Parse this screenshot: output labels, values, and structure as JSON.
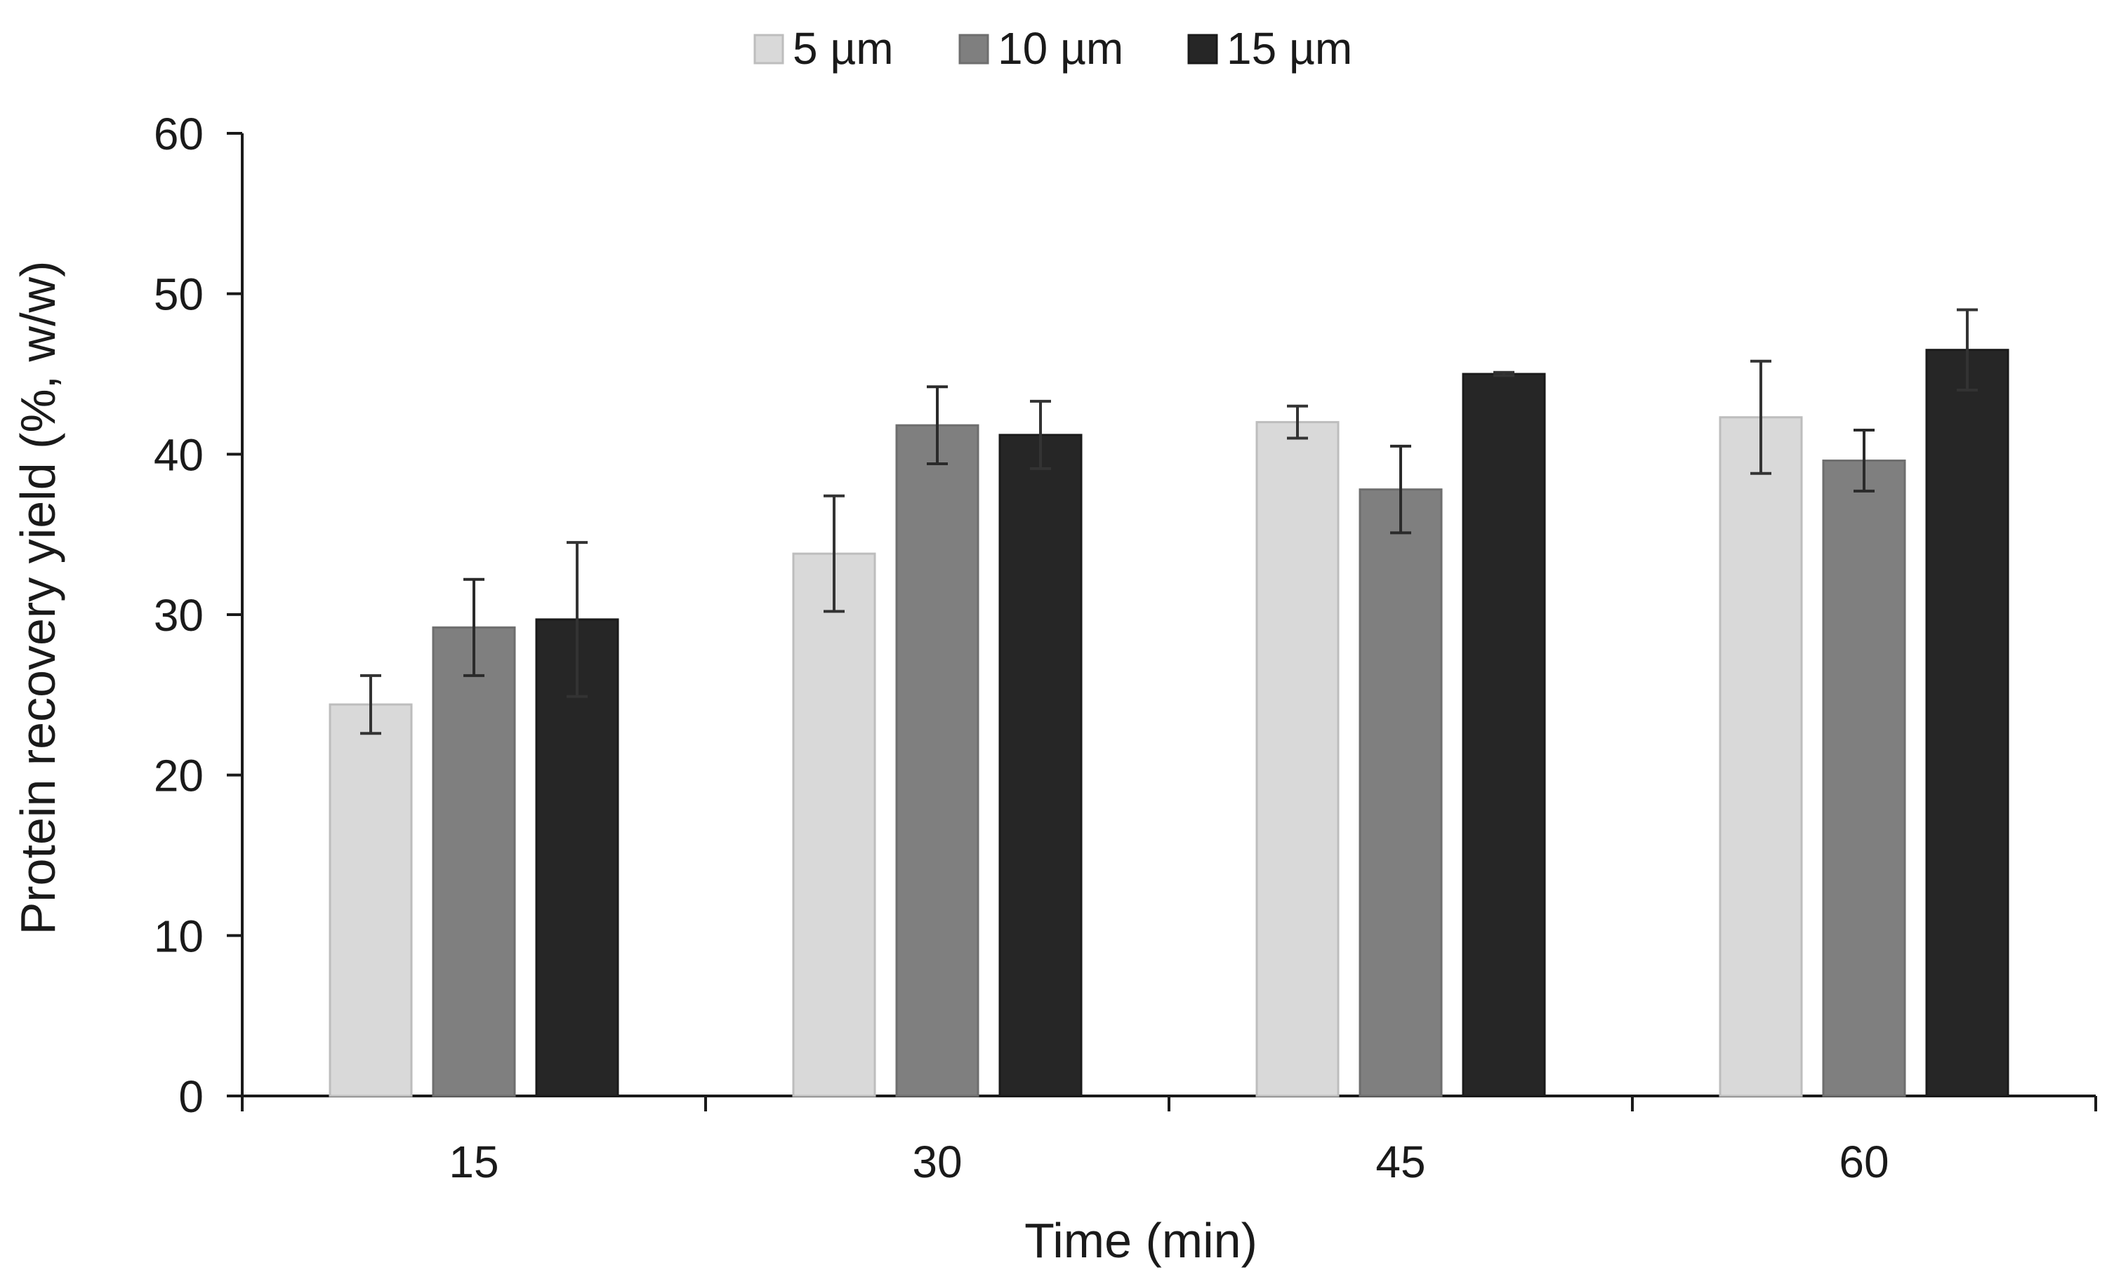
{
  "chart_data": {
    "type": "bar",
    "title": "",
    "xlabel": "Time (min)",
    "ylabel": "Protein recovery yield (%, w/w)",
    "categories": [
      "15",
      "30",
      "45",
      "60"
    ],
    "ylim": [
      0,
      60
    ],
    "yticks": [
      0,
      10,
      20,
      30,
      40,
      50,
      60
    ],
    "ytick_labels": [
      "0",
      "10",
      "20",
      "30",
      "40",
      "50",
      "60"
    ],
    "grid": false,
    "legend_position": "top-center",
    "series": [
      {
        "name": "5 µm",
        "color": "#d9d9d9",
        "edge": "#bdbdbd",
        "values": [
          24.4,
          33.8,
          42.0,
          42.3
        ],
        "errors": [
          1.8,
          3.6,
          1.0,
          3.5
        ]
      },
      {
        "name": "10 µm",
        "color": "#7f7f7f",
        "edge": "#6e6e6e",
        "values": [
          29.2,
          41.8,
          37.8,
          39.6
        ],
        "errors": [
          3.0,
          2.4,
          2.7,
          1.9
        ]
      },
      {
        "name": "15 µm",
        "color": "#262626",
        "edge": "#1a1a1a",
        "values": [
          29.7,
          41.2,
          45.0,
          46.5
        ],
        "errors": [
          4.8,
          2.1,
          0.1,
          2.5
        ]
      }
    ]
  }
}
